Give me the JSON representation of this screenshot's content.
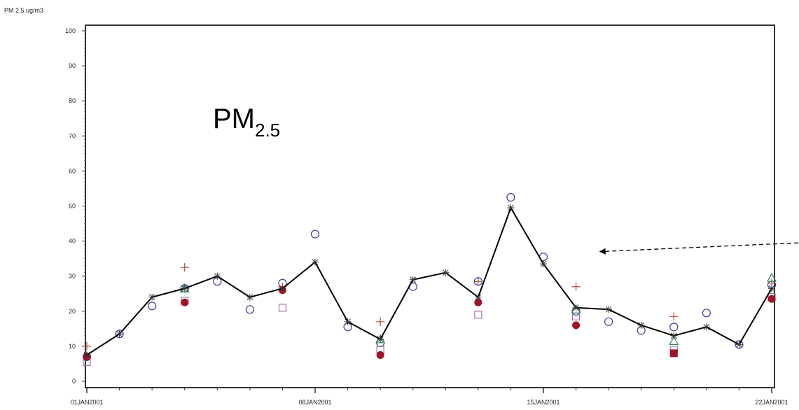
{
  "chart_data": {
    "type": "scatter",
    "ylabel": "PM 2.5 ug/m3",
    "annotation": {
      "main": "PM",
      "sub": "2.5"
    },
    "ylim": [
      0,
      100
    ],
    "yticks": [
      0,
      10,
      20,
      30,
      40,
      50,
      60,
      70,
      80,
      90,
      100
    ],
    "xlim": [
      "2001-01-01",
      "2001-01-22"
    ],
    "xticks": [
      {
        "date": "2001-01-01",
        "label": "01JAN2001"
      },
      {
        "date": "2001-01-08",
        "label": "08JAN2001"
      },
      {
        "date": "2001-01-15",
        "label": "15JAN2001"
      },
      {
        "date": "2001-01-22",
        "label": "22JAN2001"
      }
    ],
    "grid": false,
    "colors": {
      "line": "#000000",
      "circle": "#3a3aa0",
      "square": "#9c72a6",
      "filled": "#a0142a",
      "plus": "#b5483a",
      "triangle": "#2e8b57"
    },
    "line_series": {
      "marker": "star",
      "points": [
        [
          "2001-01-01",
          7.5
        ],
        [
          "2001-01-02",
          13.5
        ],
        [
          "2001-01-03",
          24
        ],
        [
          "2001-01-04",
          26.5
        ],
        [
          "2001-01-05",
          30
        ],
        [
          "2001-01-06",
          24
        ],
        [
          "2001-01-07",
          26.5
        ],
        [
          "2001-01-08",
          34
        ],
        [
          "2001-01-09",
          17
        ],
        [
          "2001-01-10",
          12
        ],
        [
          "2001-01-11",
          29
        ],
        [
          "2001-01-12",
          31
        ],
        [
          "2001-01-13",
          24
        ],
        [
          "2001-01-14",
          49.5
        ],
        [
          "2001-01-15",
          33.5
        ],
        [
          "2001-01-16",
          21
        ],
        [
          "2001-01-17",
          20.5
        ],
        [
          "2001-01-18",
          16
        ],
        [
          "2001-01-19",
          13
        ],
        [
          "2001-01-20",
          15.5
        ],
        [
          "2001-01-21",
          10.5
        ],
        [
          "2001-01-22",
          26.5
        ]
      ]
    },
    "marker_series": [
      {
        "marker": "circle",
        "points": [
          [
            "2001-01-01",
            7
          ],
          [
            "2001-01-02",
            13.5
          ],
          [
            "2001-01-03",
            21.5
          ],
          [
            "2001-01-04",
            26.5
          ],
          [
            "2001-01-05",
            28.5
          ],
          [
            "2001-01-06",
            20.5
          ],
          [
            "2001-01-07",
            28
          ],
          [
            "2001-01-08",
            42
          ],
          [
            "2001-01-09",
            15.5
          ],
          [
            "2001-01-10",
            11
          ],
          [
            "2001-01-11",
            27
          ],
          [
            "2001-01-13",
            28.5
          ],
          [
            "2001-01-14",
            52.5
          ],
          [
            "2001-01-15",
            35.5
          ],
          [
            "2001-01-16",
            20
          ],
          [
            "2001-01-17",
            17
          ],
          [
            "2001-01-18",
            14.5
          ],
          [
            "2001-01-19",
            15.5
          ],
          [
            "2001-01-20",
            19.5
          ],
          [
            "2001-01-21",
            10.5
          ],
          [
            "2001-01-22",
            27.5
          ]
        ]
      },
      {
        "marker": "square",
        "points": [
          [
            "2001-01-01",
            5.5
          ],
          [
            "2001-01-04",
            23
          ],
          [
            "2001-01-07",
            21
          ],
          [
            "2001-01-10",
            9
          ],
          [
            "2001-01-13",
            19
          ],
          [
            "2001-01-16",
            18.5
          ],
          [
            "2001-01-19",
            9
          ],
          [
            "2001-01-22",
            24
          ]
        ]
      },
      {
        "marker": "filled-circle",
        "points": [
          [
            "2001-01-01",
            7
          ],
          [
            "2001-01-04",
            22.5
          ],
          [
            "2001-01-07",
            26
          ],
          [
            "2001-01-10",
            7.5
          ],
          [
            "2001-01-13",
            22.5
          ],
          [
            "2001-01-16",
            16
          ],
          [
            "2001-01-22",
            23.5
          ]
        ]
      },
      {
        "marker": "filled-square",
        "points": [
          [
            "2001-01-19",
            8
          ]
        ]
      },
      {
        "marker": "plus",
        "points": [
          [
            "2001-01-01",
            10
          ],
          [
            "2001-01-04",
            32.5
          ],
          [
            "2001-01-07",
            27
          ],
          [
            "2001-01-10",
            17
          ],
          [
            "2001-01-13",
            28.5
          ],
          [
            "2001-01-16",
            27
          ],
          [
            "2001-01-19",
            18.5
          ],
          [
            "2001-01-22",
            28
          ]
        ]
      },
      {
        "marker": "triangle",
        "points": [
          [
            "2001-01-04",
            26.5
          ],
          [
            "2001-01-10",
            12
          ],
          [
            "2001-01-16",
            20.5
          ],
          [
            "2001-01-19",
            11.5
          ],
          [
            "2001-01-22",
            29.5
          ]
        ]
      }
    ],
    "arrow": {
      "from": {
        "x": "2001-01-22",
        "y": 39.5
      },
      "to": {
        "x": "2001-01-16",
        "y": 37
      }
    }
  }
}
